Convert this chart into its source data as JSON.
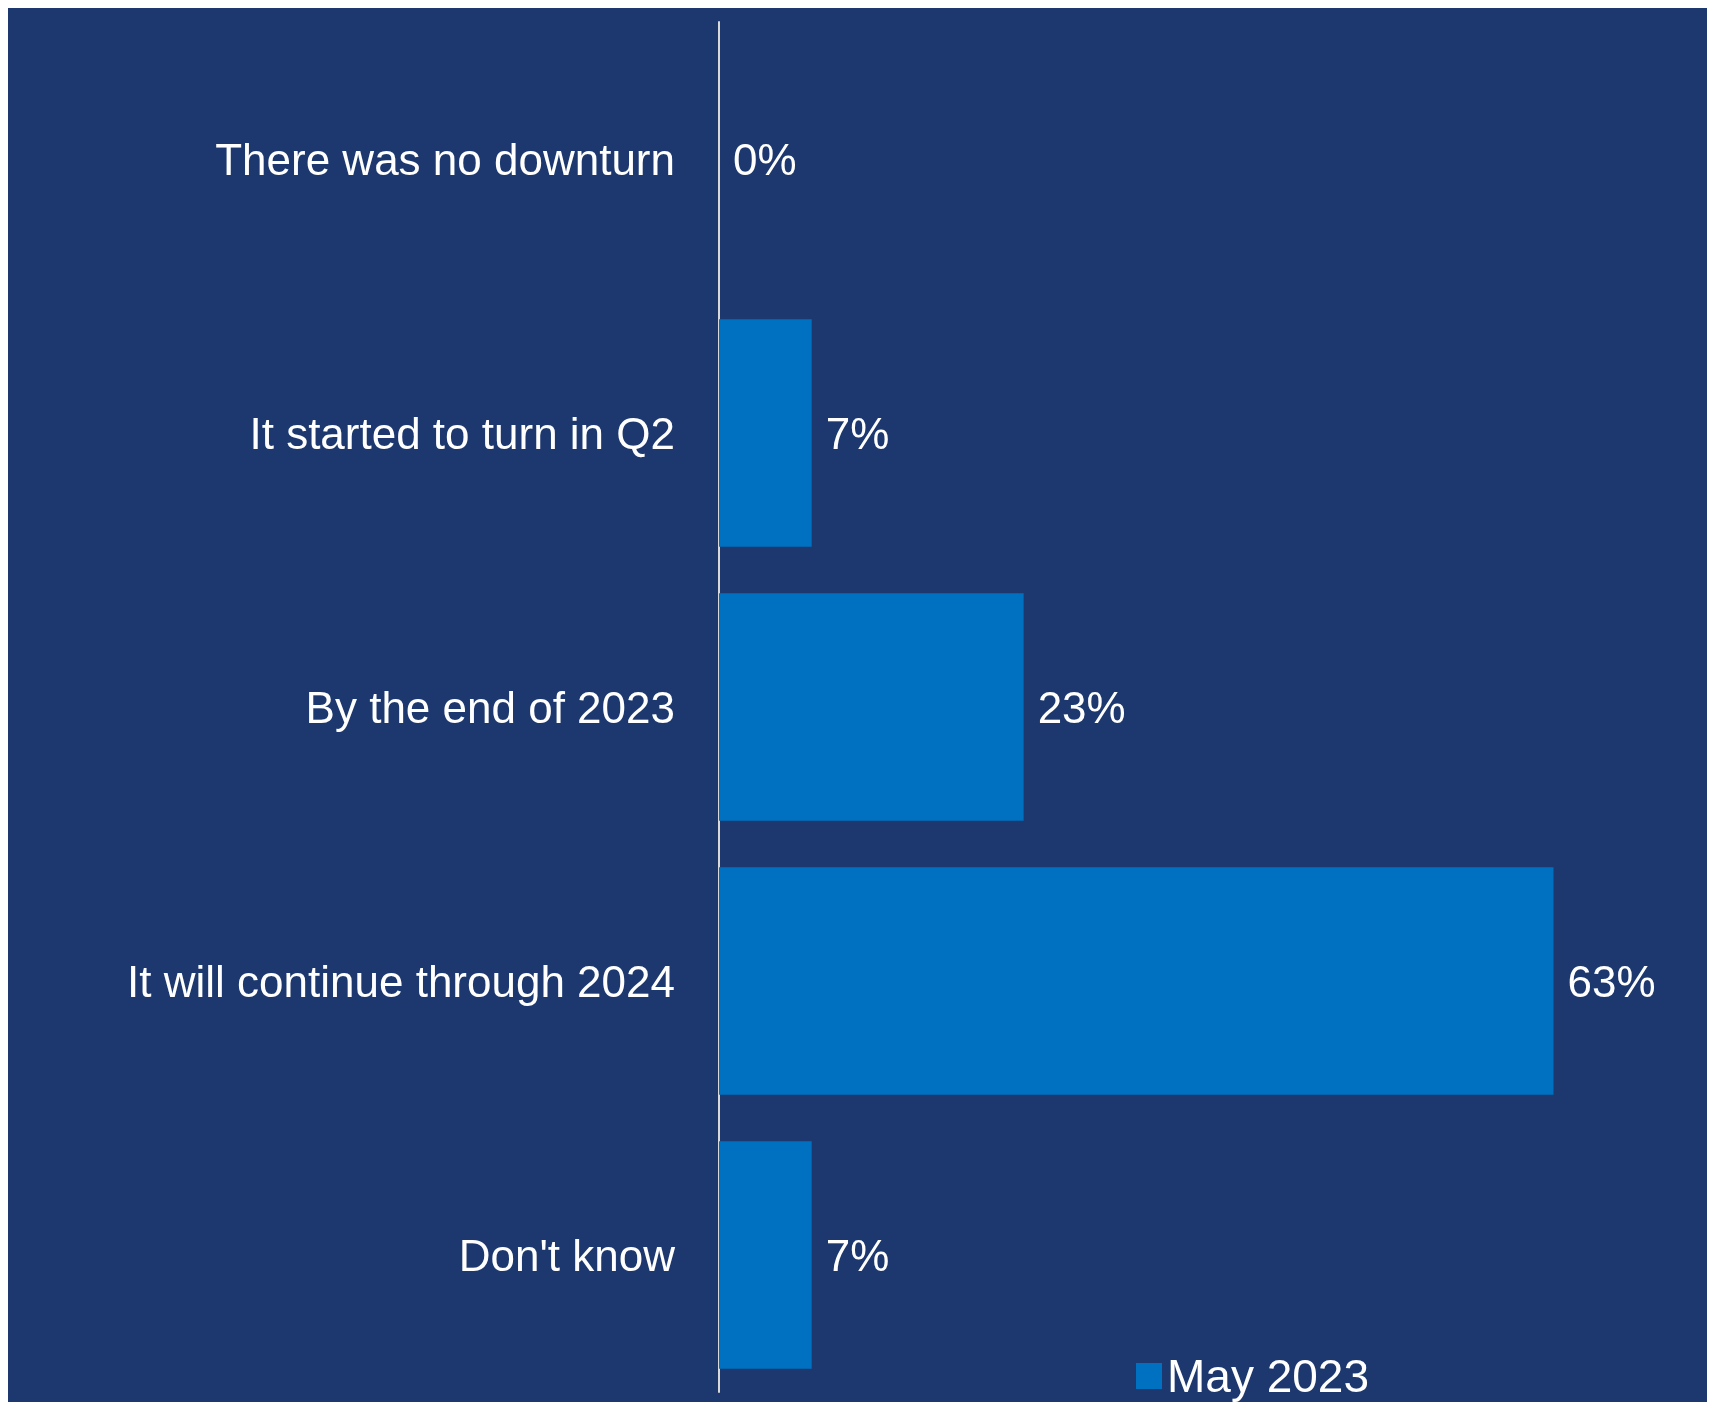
{
  "chart_data": {
    "type": "bar",
    "orientation": "horizontal",
    "categories": [
      "There was no downturn",
      "It started to turn in Q2",
      "By the end of 2023",
      "It will continue through 2024",
      "Don't know"
    ],
    "series": [
      {
        "name": "May 2023",
        "color": "#0070c0",
        "values": [
          0,
          7,
          23,
          63,
          7
        ],
        "value_labels": [
          "0%",
          "7%",
          "23%",
          "63%",
          "7%"
        ]
      }
    ],
    "legend": "bottom right"
  }
}
